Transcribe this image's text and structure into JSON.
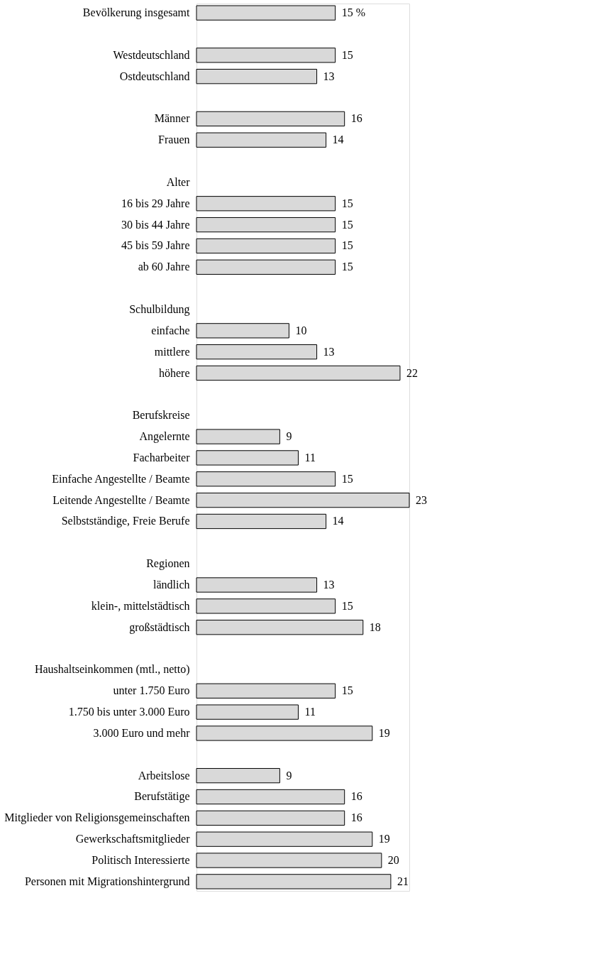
{
  "chart_data": {
    "type": "bar",
    "orientation": "horizontal",
    "color": "#d9d9d9",
    "categories": [
      "Bevölkerung insgesamt",
      null,
      "Westdeutschland",
      "Ostdeutschland",
      null,
      "Männer",
      "Frauen",
      null,
      "Alter",
      "16 bis 29 Jahre",
      "30 bis 44 Jahre",
      "45 bis 59 Jahre",
      "ab 60 Jahre",
      null,
      "Schulbildung",
      "einfache",
      "mittlere",
      "höhere",
      null,
      "Berufskreise",
      "Angelernte",
      "Facharbeiter",
      "Einfache Angestellte / Beamte",
      "Leitende Angestellte / Beamte",
      "Selbstständige, Freie Berufe",
      null,
      "Regionen",
      "ländlich",
      "klein-, mittelstädtisch",
      "großstädtisch",
      null,
      "Haushaltseinkommen (mtl., netto)",
      "unter 1.750 Euro",
      "1.750 bis unter 3.000 Euro",
      "3.000 Euro und mehr",
      null,
      "Arbeitslose",
      "Berufstätige",
      "Mitglieder von Religionsgemeinschaften",
      "Gewerkschaftsmitglieder",
      "Politisch Interessierte",
      "Personen mit Migrationshintergrund"
    ],
    "values": [
      15,
      null,
      15,
      13,
      null,
      16,
      14,
      null,
      null,
      15,
      15,
      15,
      15,
      null,
      null,
      10,
      13,
      22,
      null,
      null,
      9,
      11,
      15,
      23,
      14,
      null,
      null,
      13,
      15,
      18,
      null,
      null,
      15,
      11,
      19,
      null,
      9,
      16,
      16,
      19,
      20,
      21
    ],
    "value_labels": [
      "15 %",
      null,
      "15",
      "13",
      null,
      "16",
      "14",
      null,
      null,
      "15",
      "15",
      "15",
      "15",
      null,
      null,
      "10",
      "13",
      "22",
      null,
      null,
      "9",
      "11",
      "15",
      "23",
      "14",
      null,
      null,
      "13",
      "15",
      "18",
      null,
      null,
      "15",
      "11",
      "19",
      null,
      "9",
      "16",
      "16",
      "19",
      "20",
      "21"
    ]
  }
}
